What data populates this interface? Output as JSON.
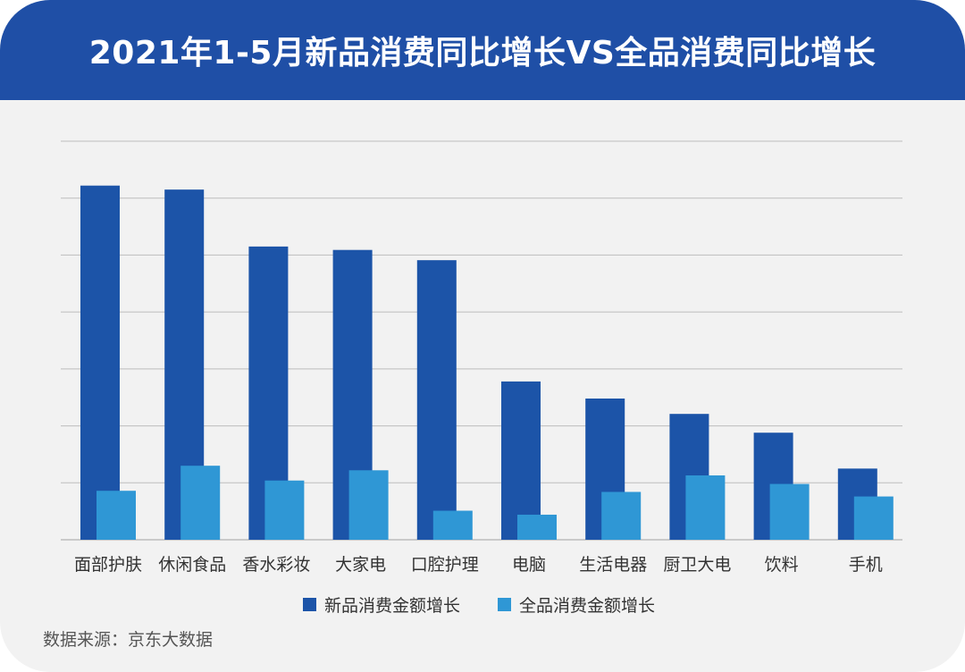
{
  "title": "2021年1-5月新品消费同比增长VS全品消费同比增长",
  "source_text": "数据来源：京东大数据",
  "colors": {
    "header": "#1f4fa6",
    "background": "#f2f2f2",
    "new_series": "#1c54a8",
    "all_series": "#2f97d5",
    "grid": "#bdbdbd"
  },
  "chart_data": {
    "type": "bar",
    "title": "2021年1-5月新品消费同比增长VS全品消费同比增长",
    "xlabel": "",
    "ylabel": "",
    "categories": [
      "面部护肤",
      "休闲食品",
      "香水彩妆",
      "大家电",
      "口腔护理",
      "电脑",
      "生活电器",
      "厨卫大电",
      "饮料",
      "手机"
    ],
    "series": [
      {
        "name": "新品消费金额增长",
        "values": [
          6.22,
          6.15,
          5.15,
          5.09,
          4.91,
          2.78,
          2.48,
          2.21,
          1.88,
          1.25
        ]
      },
      {
        "name": "全品消费金额增长",
        "values": [
          0.86,
          1.3,
          1.04,
          1.22,
          0.51,
          0.44,
          0.84,
          1.13,
          0.98,
          0.76
        ]
      }
    ],
    "ylim": [
      0,
      7
    ],
    "y_tick_labels_shown": false,
    "grid": true,
    "legend": "bottom-center"
  }
}
